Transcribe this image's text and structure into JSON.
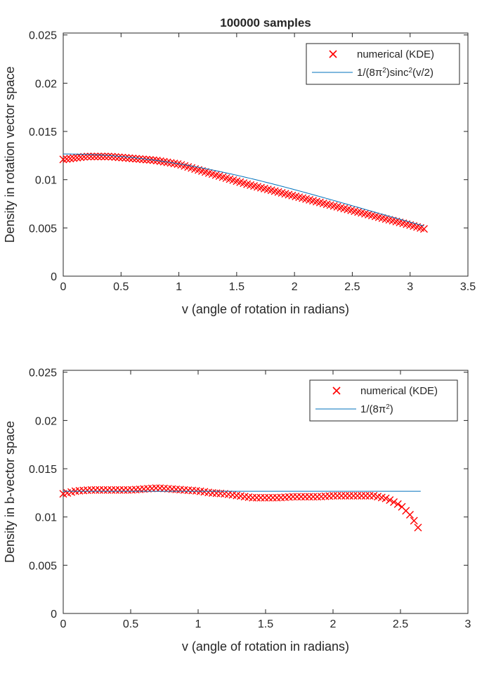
{
  "figure_title": "100000 samples",
  "chart_data": [
    {
      "type": "scatter",
      "title": "100000 samples",
      "xlabel": "v (angle of rotation in radians)",
      "ylabel": "Density in rotation vector space",
      "xlim": [
        0,
        3.5
      ],
      "ylim": [
        0,
        0.0252
      ],
      "xticks": [
        "0",
        "0.5",
        "1",
        "1.5",
        "2",
        "2.5",
        "3",
        "3.5"
      ],
      "yticks": [
        "0",
        "0.005",
        "0.01",
        "0.015",
        "0.02",
        "0.025"
      ],
      "grid": false,
      "legend_position": "top-right",
      "series": [
        {
          "name": "numerical (KDE)",
          "marker": "x",
          "color": "#ff0000",
          "points": [
            [
              0.0,
              0.0121
            ],
            [
              0.2,
              0.0124
            ],
            [
              0.4,
              0.0124
            ],
            [
              0.6,
              0.0122
            ],
            [
              0.8,
              0.012
            ],
            [
              1.0,
              0.0116
            ],
            [
              1.2,
              0.0109
            ],
            [
              1.4,
              0.0102
            ],
            [
              1.6,
              0.0095
            ],
            [
              1.8,
              0.0089
            ],
            [
              2.0,
              0.0083
            ],
            [
              2.2,
              0.0077
            ],
            [
              2.4,
              0.0071
            ],
            [
              2.6,
              0.0065
            ],
            [
              2.8,
              0.0059
            ],
            [
              3.0,
              0.0053
            ],
            [
              3.12,
              0.0049
            ]
          ]
        },
        {
          "name": "1/(8π²)sinc²(v/2)",
          "legend_label_parts": [
            "1/(8",
            "π",
            "2",
            ")sinc",
            "2",
            "(v/2)"
          ],
          "marker": "line",
          "color": "#0072bd",
          "function": "sinc_squared",
          "x_range": [
            0,
            3.12
          ]
        }
      ]
    },
    {
      "type": "scatter",
      "title": "",
      "xlabel": "v (angle of rotation in radians)",
      "ylabel": "Density in b-vector space",
      "xlim": [
        0,
        3
      ],
      "ylim": [
        0,
        0.0252
      ],
      "xticks": [
        "0",
        "0.5",
        "1",
        "1.5",
        "2",
        "2.5",
        "3"
      ],
      "yticks": [
        "0",
        "0.005",
        "0.01",
        "0.015",
        "0.02",
        "0.025"
      ],
      "grid": false,
      "legend_position": "top-right",
      "series": [
        {
          "name": "numerical (KDE)",
          "marker": "x",
          "color": "#ff0000",
          "points": [
            [
              0.0,
              0.0124
            ],
            [
              0.1,
              0.0127
            ],
            [
              0.2,
              0.0128
            ],
            [
              0.3,
              0.0128
            ],
            [
              0.4,
              0.0128
            ],
            [
              0.5,
              0.0128
            ],
            [
              0.6,
              0.0129
            ],
            [
              0.7,
              0.013
            ],
            [
              0.8,
              0.0129
            ],
            [
              0.9,
              0.0128
            ],
            [
              1.0,
              0.0127
            ],
            [
              1.1,
              0.0125
            ],
            [
              1.2,
              0.0124
            ],
            [
              1.3,
              0.0122
            ],
            [
              1.4,
              0.012
            ],
            [
              1.5,
              0.012
            ],
            [
              1.6,
              0.012
            ],
            [
              1.7,
              0.0121
            ],
            [
              1.8,
              0.0121
            ],
            [
              1.9,
              0.0121
            ],
            [
              2.0,
              0.0122
            ],
            [
              2.1,
              0.0122
            ],
            [
              2.2,
              0.0122
            ],
            [
              2.3,
              0.0122
            ],
            [
              2.4,
              0.0119
            ],
            [
              2.5,
              0.0112
            ],
            [
              2.58,
              0.0101
            ],
            [
              2.63,
              0.0089
            ]
          ]
        },
        {
          "name": "1/(8π²)",
          "legend_label_parts": [
            "1/(8",
            "π",
            "2",
            ")"
          ],
          "marker": "line",
          "color": "#0072bd",
          "function": "constant",
          "value": 0.012665,
          "x_range": [
            0,
            2.65
          ]
        }
      ]
    }
  ]
}
